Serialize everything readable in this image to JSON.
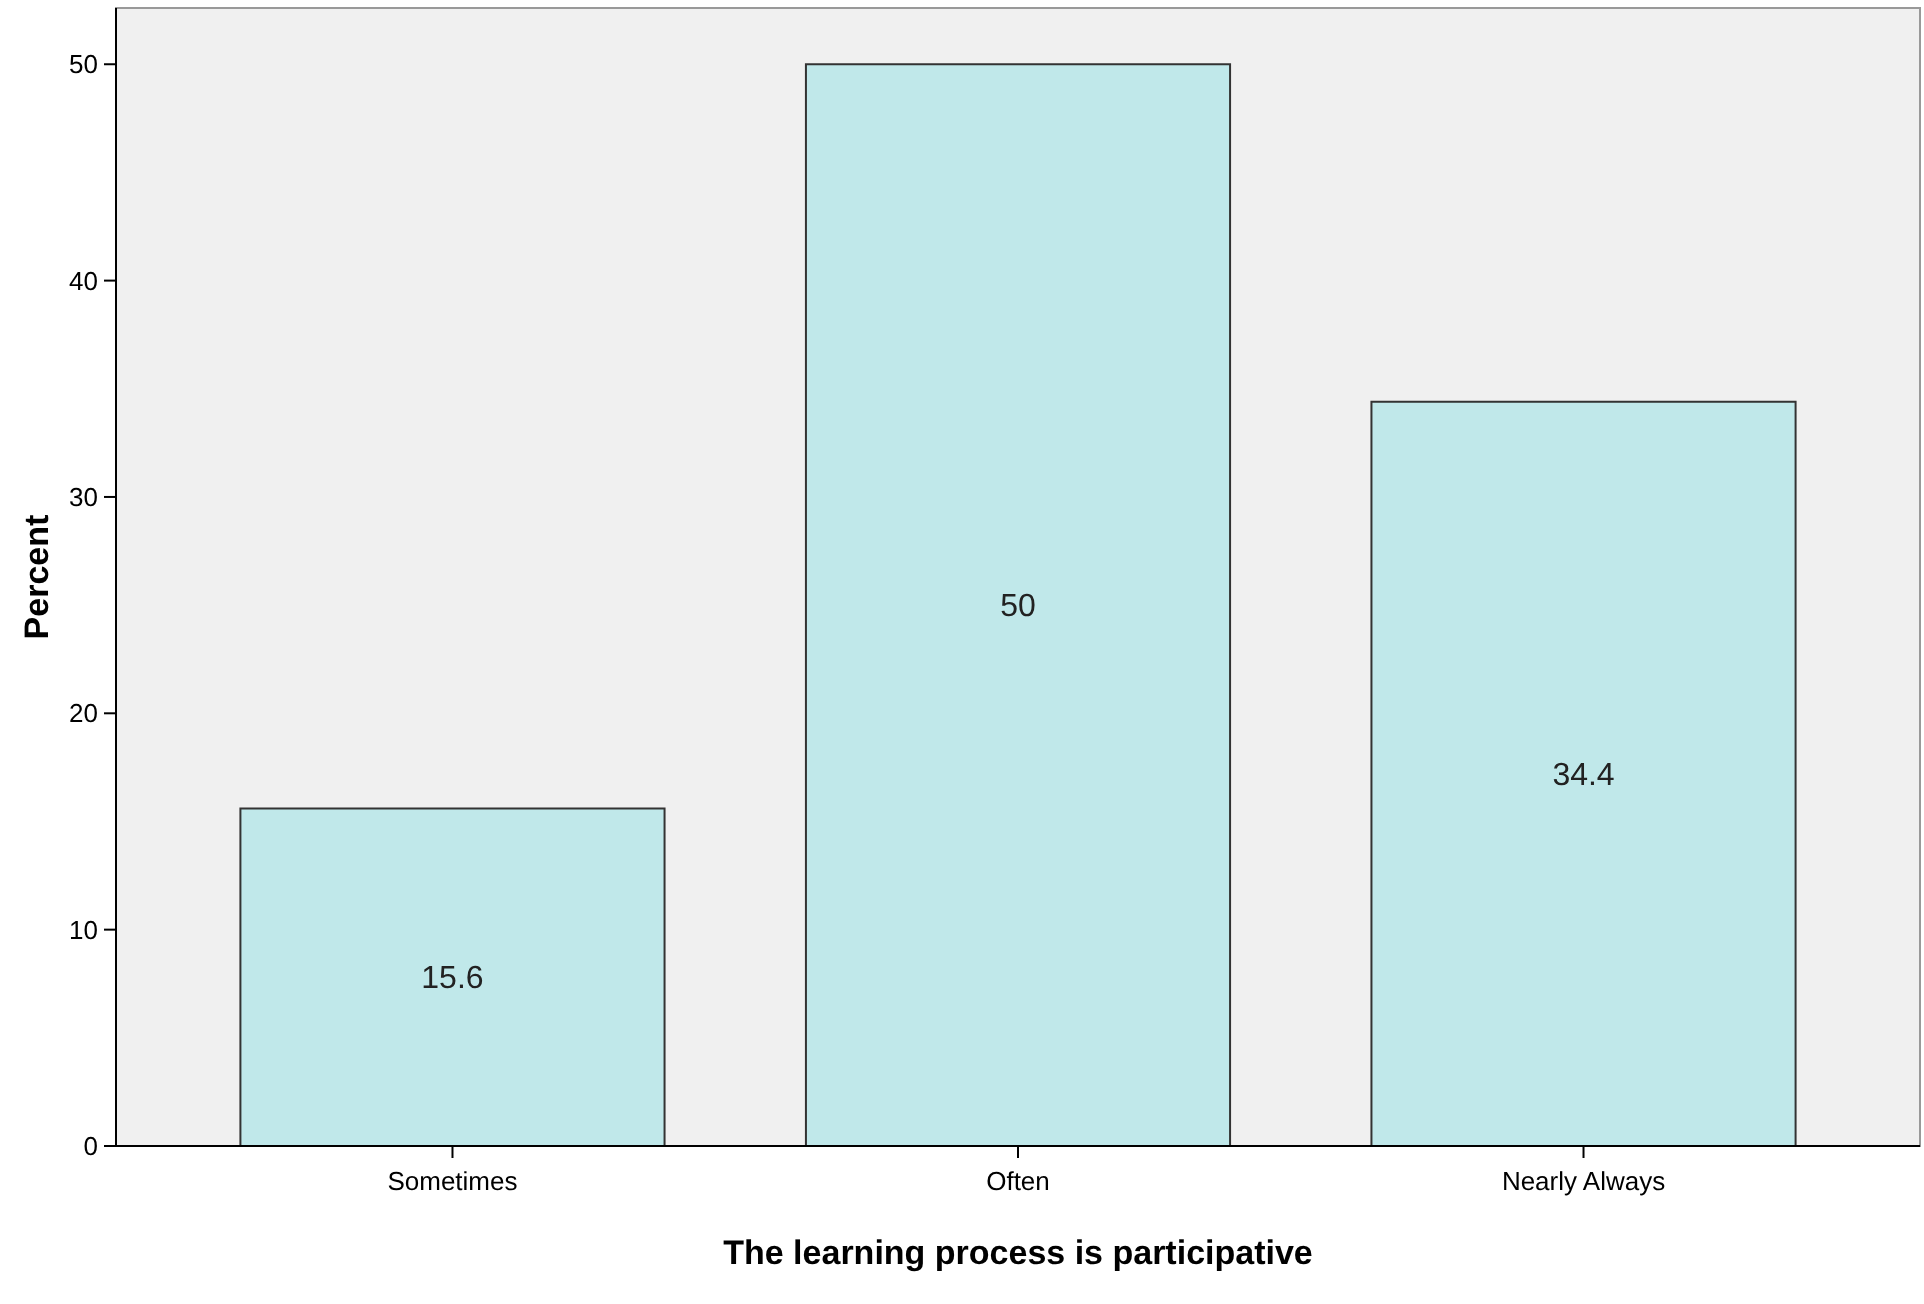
{
  "chart_data": {
    "type": "bar",
    "xlabel": "The learning process is participative",
    "ylabel": "Percent",
    "categories": [
      "Sometimes",
      "Often",
      "Nearly Always"
    ],
    "values": [
      15.6,
      50,
      34.4
    ],
    "color": "#c0e8ea",
    "ylim": [
      0,
      52.6
    ],
    "yticks": [
      0,
      10,
      20,
      30,
      40,
      50
    ],
    "data_labels": true,
    "grid": false
  }
}
